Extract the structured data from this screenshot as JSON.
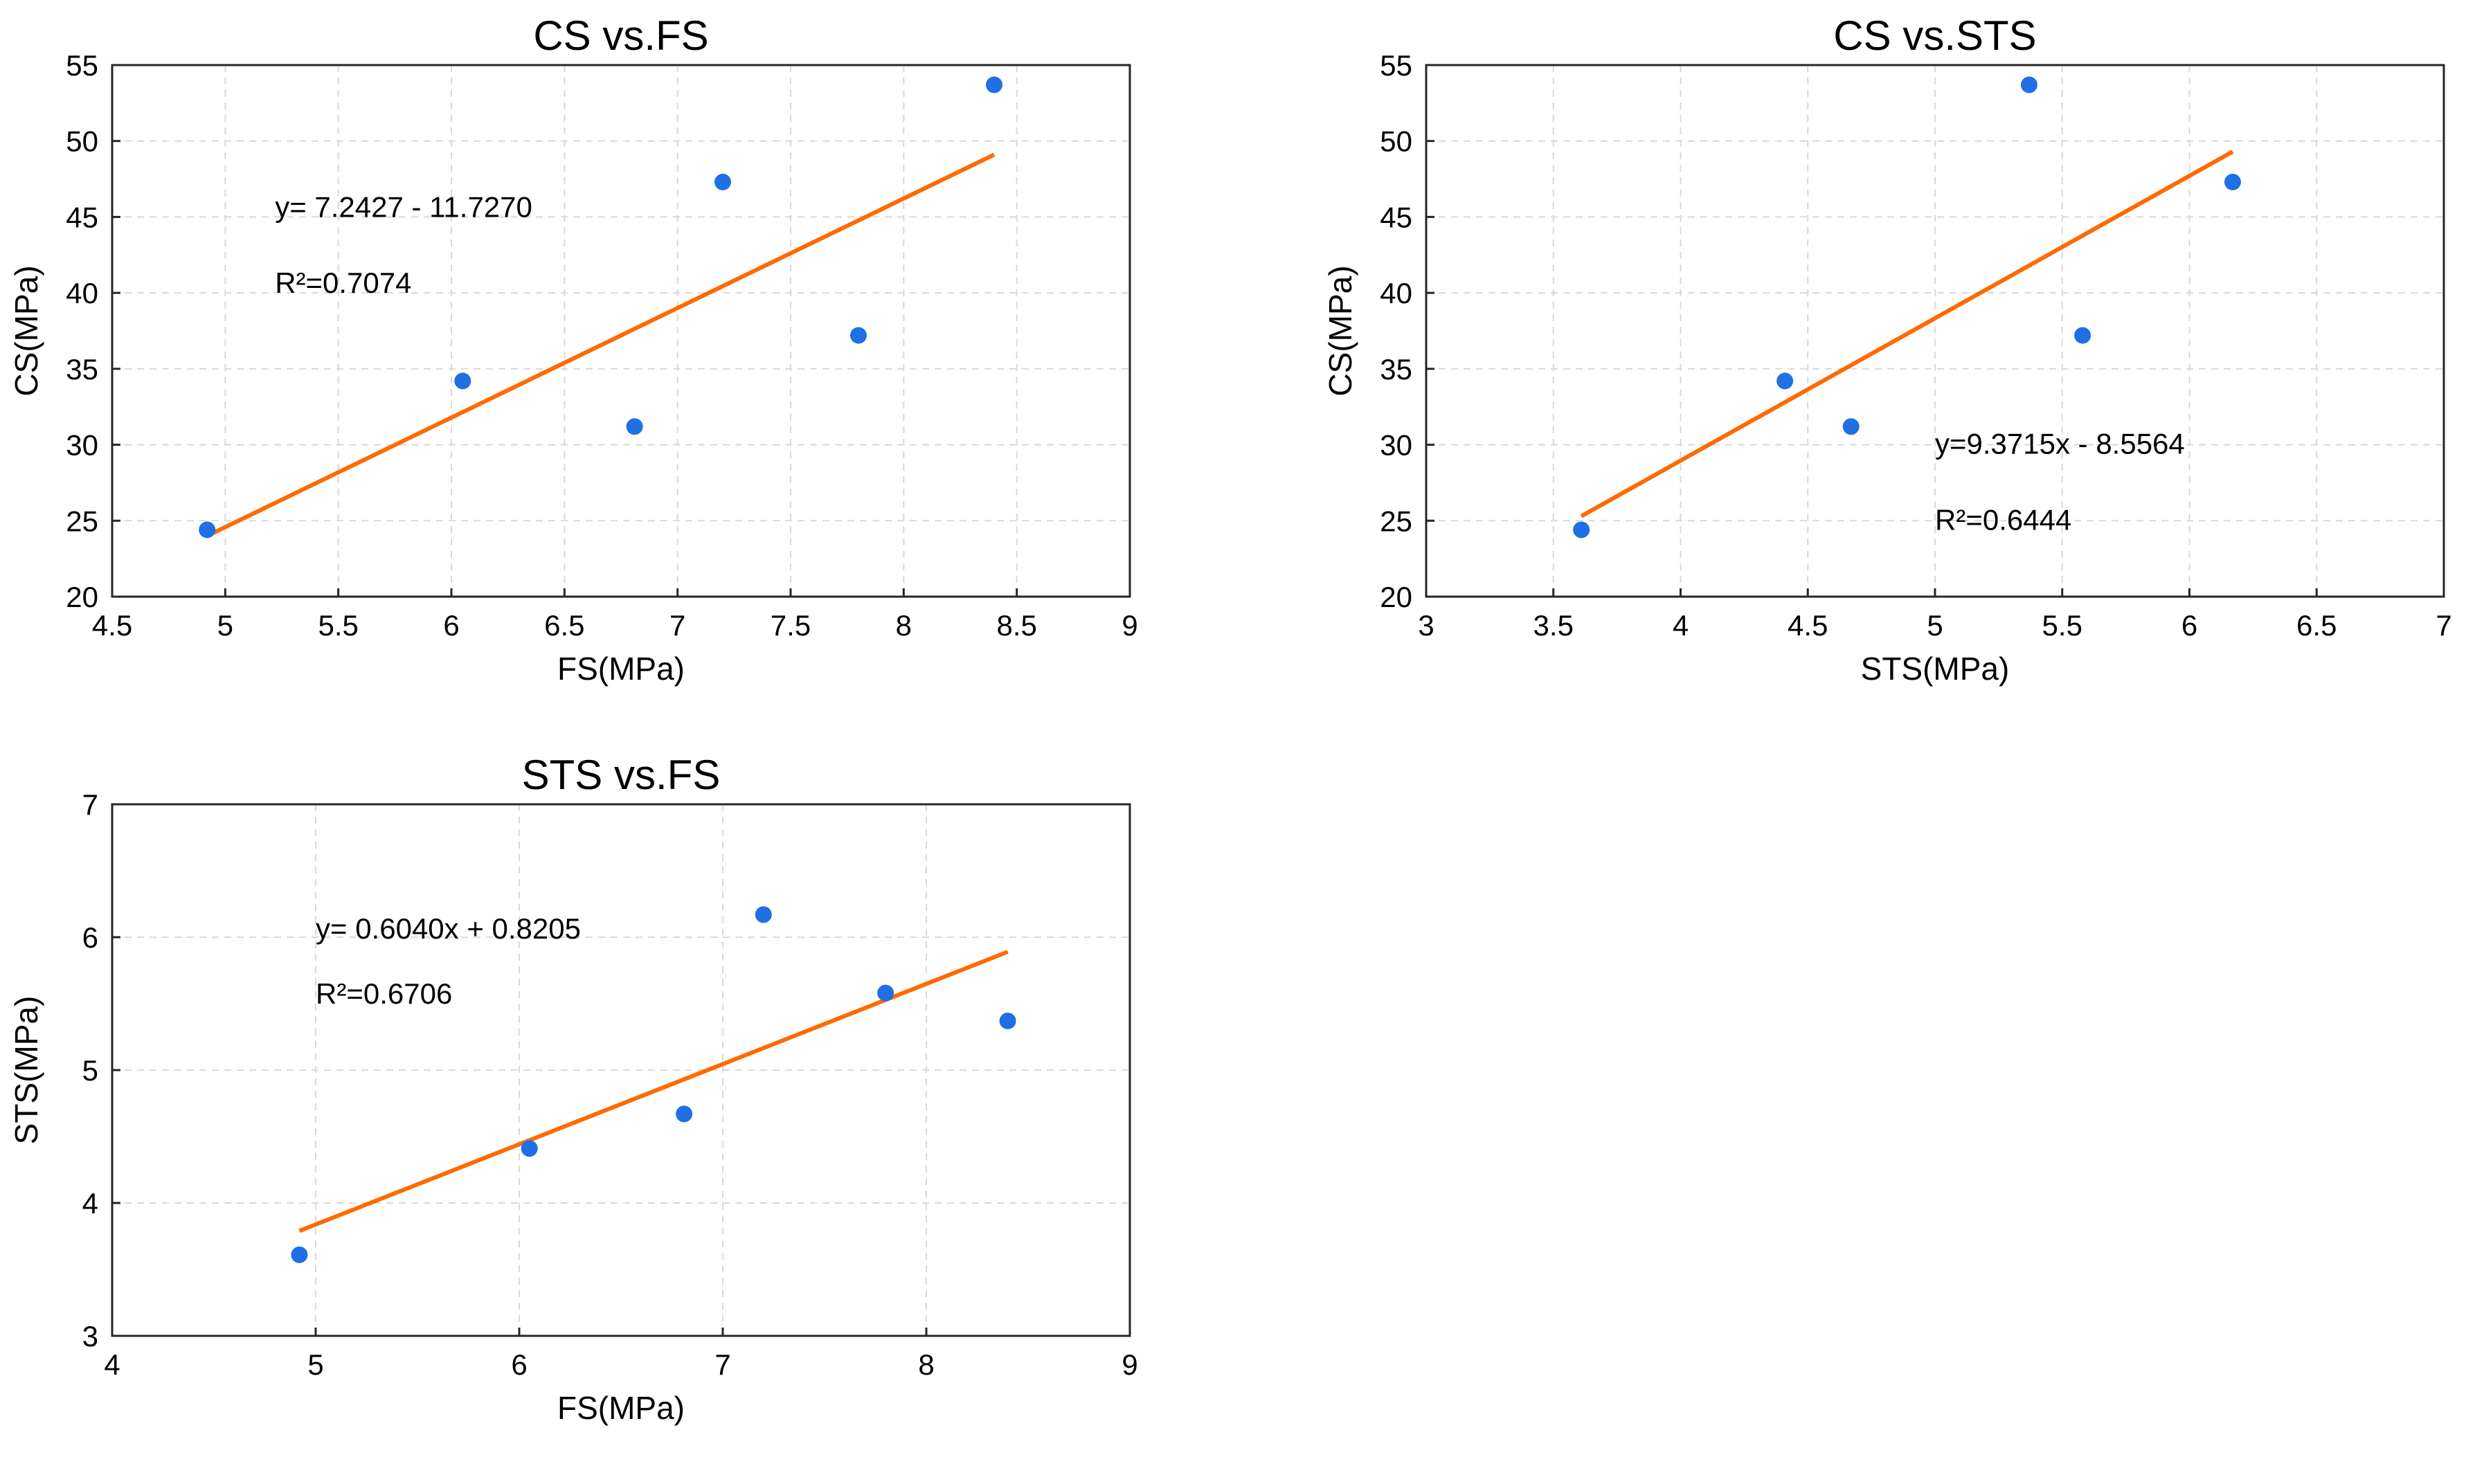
{
  "colors": {
    "points": "#1f6fe5",
    "fit": "#ff6a00",
    "frame": "#262626",
    "grid": "#d9d9d9"
  },
  "chart_data": [
    {
      "type": "scatter",
      "title": "CS vs.FS",
      "xlabel": "FS(MPa)",
      "ylabel": "CS(MPa)",
      "xlim": [
        4.5,
        9
      ],
      "ylim": [
        20,
        55
      ],
      "xticks": [
        4.5,
        5,
        5.5,
        6,
        6.5,
        7,
        7.5,
        8,
        8.5,
        9
      ],
      "xtick_labels": [
        "4.5",
        "5",
        "5.5",
        "6",
        "6.5",
        "7",
        "7.5",
        "8",
        "8.5",
        "9"
      ],
      "yticks": [
        20,
        25,
        30,
        35,
        40,
        45,
        50,
        55
      ],
      "ytick_labels": [
        "20",
        "25",
        "30",
        "35",
        "40",
        "45",
        "50",
        "55"
      ],
      "grid": true,
      "points": {
        "x": [
          4.92,
          6.05,
          6.81,
          7.2,
          7.8,
          8.4
        ],
        "y": [
          24.4,
          34.2,
          31.2,
          47.3,
          37.2,
          53.7
        ]
      },
      "fit_line": {
        "x": [
          4.92,
          8.4
        ],
        "y": [
          24.0,
          49.1
        ]
      },
      "annotations": [
        {
          "text": "y= 7.2427 - 11.7270",
          "x": 5.22,
          "y": 45.0
        },
        {
          "text": "R²=0.7074",
          "x": 5.22,
          "y": 40.0
        }
      ]
    },
    {
      "type": "scatter",
      "title": "CS vs.STS",
      "xlabel": "STS(MPa)",
      "ylabel": "CS(MPa)",
      "xlim": [
        3,
        7
      ],
      "ylim": [
        20,
        55
      ],
      "xticks": [
        3,
        3.5,
        4,
        4.5,
        5,
        5.5,
        6,
        6.5,
        7
      ],
      "xtick_labels": [
        "3",
        "3.5",
        "4",
        "4.5",
        "5",
        "5.5",
        "6",
        "6.5",
        "7"
      ],
      "yticks": [
        20,
        25,
        30,
        35,
        40,
        45,
        50,
        55
      ],
      "ytick_labels": [
        "20",
        "25",
        "30",
        "35",
        "40",
        "45",
        "50",
        "55"
      ],
      "grid": true,
      "points": {
        "x": [
          3.61,
          4.41,
          4.67,
          5.37,
          5.58,
          6.17
        ],
        "y": [
          24.4,
          34.2,
          31.2,
          53.7,
          37.2,
          47.3
        ]
      },
      "fit_line": {
        "x": [
          3.61,
          6.17
        ],
        "y": [
          25.3,
          49.3
        ]
      },
      "annotations": [
        {
          "text": "y=9.3715x - 8.5564",
          "x": 5.0,
          "y": 29.4
        },
        {
          "text": "R²=0.6444",
          "x": 5.0,
          "y": 24.4
        }
      ]
    },
    {
      "type": "scatter",
      "title": "STS vs.FS",
      "xlabel": "FS(MPa)",
      "ylabel": "STS(MPa)",
      "xlim": [
        4,
        9
      ],
      "ylim": [
        3,
        7
      ],
      "xticks": [
        4,
        5,
        6,
        7,
        8,
        9
      ],
      "xtick_labels": [
        "4",
        "5",
        "6",
        "7",
        "8",
        "9"
      ],
      "yticks": [
        3,
        4,
        5,
        6,
        7
      ],
      "ytick_labels": [
        "3",
        "4",
        "5",
        "6",
        "7"
      ],
      "grid": true,
      "points": {
        "x": [
          4.92,
          6.05,
          6.81,
          7.2,
          7.8,
          8.4
        ],
        "y": [
          3.61,
          4.41,
          4.67,
          6.17,
          5.58,
          5.37
        ]
      },
      "fit_line": {
        "x": [
          4.92,
          8.4
        ],
        "y": [
          3.79,
          5.89
        ]
      },
      "annotations": [
        {
          "text": "y= 0.6040x + 0.8205",
          "x": 5.0,
          "y": 5.99
        },
        {
          "text": "R²=0.6706",
          "x": 5.0,
          "y": 5.5
        }
      ]
    }
  ]
}
